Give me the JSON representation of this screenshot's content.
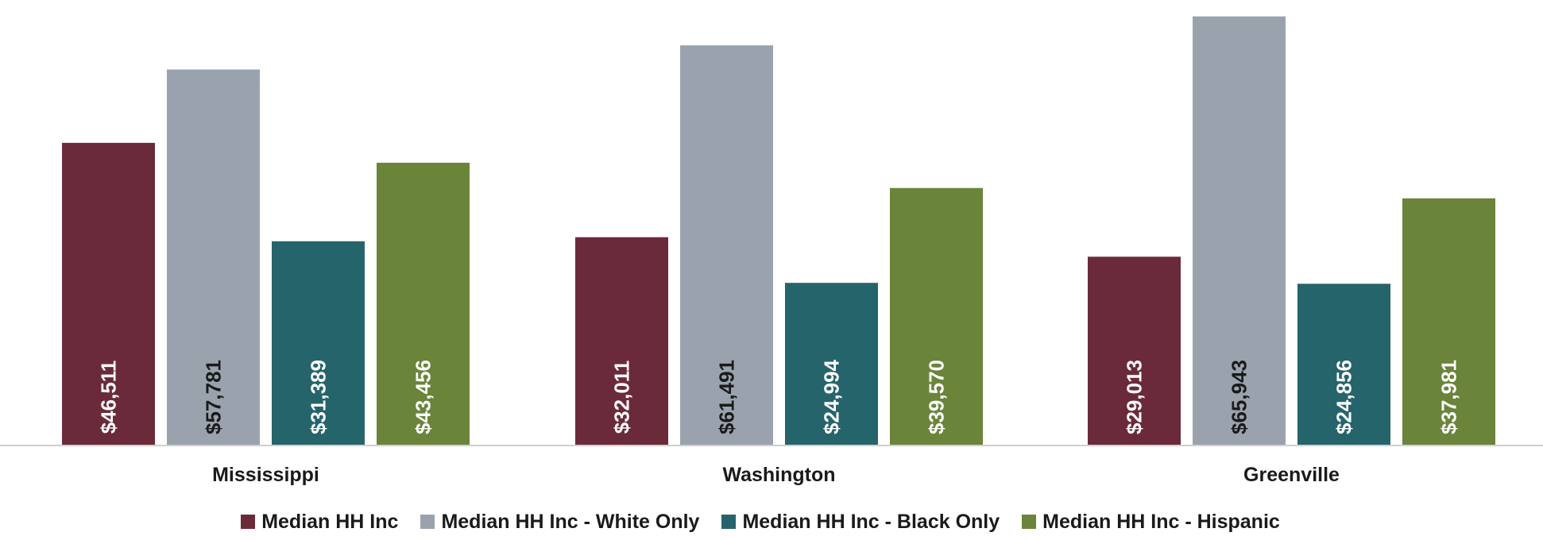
{
  "chart_data": {
    "type": "bar",
    "categories": [
      "Mississippi",
      "Washington",
      "Greenville"
    ],
    "series": [
      {
        "name": "Median HH Inc",
        "values": [
          46511,
          32011,
          29013
        ],
        "labels": [
          "$46,511",
          "$32,011",
          "$29,013"
        ],
        "color": "#6b2a3a",
        "label_color": "#ffffff"
      },
      {
        "name": "Median HH Inc - White Only",
        "values": [
          57781,
          61491,
          65943
        ],
        "labels": [
          "$57,781",
          "$61,491",
          "$65,943"
        ],
        "color": "#9aa3ad",
        "label_color": "#1a1a1a"
      },
      {
        "name": "Median HH Inc - Black Only",
        "values": [
          31389,
          24994,
          24856
        ],
        "labels": [
          "$31,389",
          "$24,994",
          "$24,856"
        ],
        "color": "#25646a",
        "label_color": "#ffffff"
      },
      {
        "name": "Median HH Inc - Hispanic",
        "values": [
          43456,
          39570,
          37981
        ],
        "labels": [
          "$43,456",
          "$39,570",
          "$37,981"
        ],
        "color": "#6a843a",
        "label_color": "#ffffff"
      }
    ],
    "ylim": [
      0,
      67000
    ],
    "grid": false,
    "legend_position": "bottom"
  }
}
